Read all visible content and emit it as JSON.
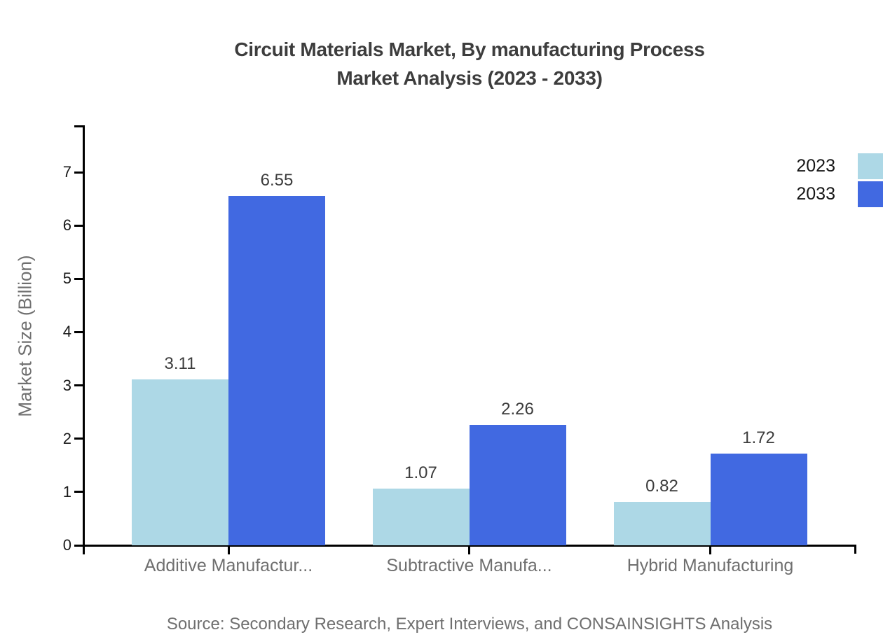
{
  "title": {
    "line1": "Circuit Materials Market, By manufacturing Process",
    "line2": "Market Analysis (2023 - 2033)"
  },
  "legend": [
    {
      "label": "2023",
      "color": "#ADD8E6"
    },
    {
      "label": "2033",
      "color": "#4169E1"
    }
  ],
  "axis": {
    "y_title": "Market Size (Billion)"
  },
  "source": {
    "text": "Source: Secondary Research, Expert Interviews, and CONSAINSIGHTS Analysis"
  },
  "colors": {
    "series_2023": "#ADD8E6",
    "series_2033": "#4169E1",
    "axis": "#000000",
    "muted_text": "#6f6f6f",
    "dark_text": "#3c3c3c"
  },
  "chart_data": {
    "type": "bar",
    "title": "Circuit Materials Market, By manufacturing Process Market Analysis (2023 - 2033)",
    "categories": [
      "Additive Manufactur...",
      "Subtractive Manufa...",
      "Hybrid Manufacturing"
    ],
    "series": [
      {
        "name": "2023",
        "color": "#ADD8E6",
        "values": [
          3.11,
          1.07,
          0.82
        ]
      },
      {
        "name": "2033",
        "color": "#4169E1",
        "values": [
          6.55,
          2.26,
          1.72
        ]
      }
    ],
    "xlabel": "",
    "ylabel": "Market Size (Billion)",
    "ylim": [
      0,
      7.9
    ],
    "yticks": [
      0,
      1,
      2,
      3,
      4,
      5,
      6,
      7
    ],
    "grid": false,
    "legend_position": "top-right",
    "value_labels": true
  }
}
